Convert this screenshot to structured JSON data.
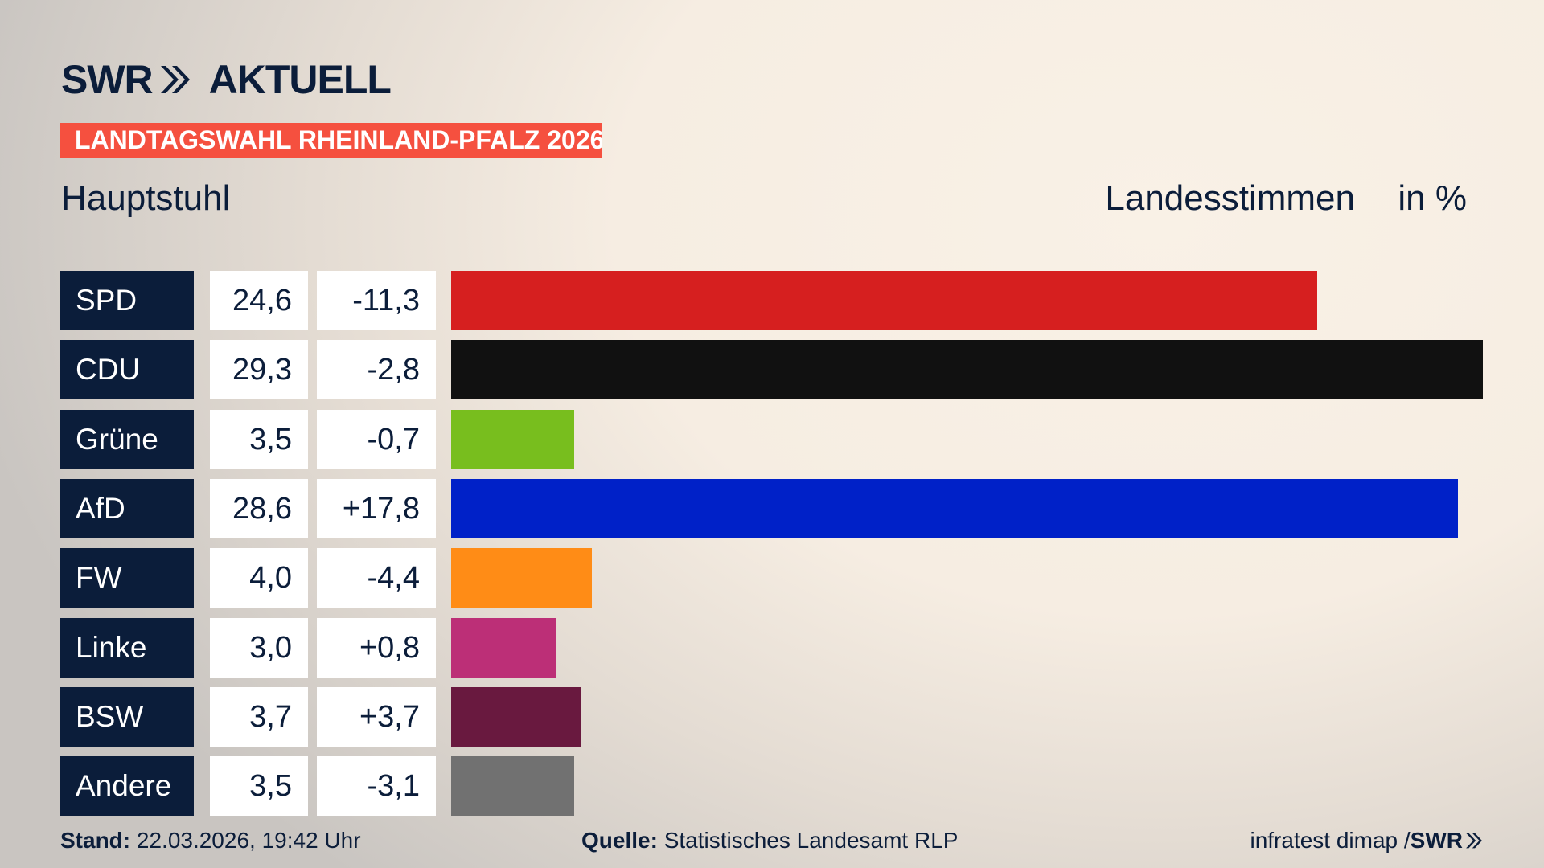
{
  "header": {
    "logo": "SWR AKTUELL",
    "logo_swr": "SWR",
    "logo_aktuell": "AKTUELL",
    "banner": "LANDTAGSWAHL RHEINLAND-PFALZ 2026",
    "place": "Hauptstuhl",
    "measure": "Landesstimmen",
    "unit": "in %"
  },
  "chart_data": {
    "type": "bar",
    "orientation": "horizontal",
    "categories": [
      "SPD",
      "CDU",
      "Grüne",
      "AfD",
      "FW",
      "Linke",
      "BSW",
      "Andere"
    ],
    "values": [
      24.6,
      29.3,
      3.5,
      28.6,
      4.0,
      3.0,
      3.7,
      3.5
    ],
    "value_labels": [
      "24,6",
      "29,3",
      "3,5",
      "28,6",
      "4,0",
      "3,0",
      "3,7",
      "3,5"
    ],
    "diff_labels": [
      "-11,3",
      "-2,8",
      "-0,7",
      "+17,8",
      "-4,4",
      "+0,8",
      "+3,7",
      "-3,1"
    ],
    "colors": [
      "#d61f1f",
      "#111111",
      "#78be1e",
      "#0021c8",
      "#ff8c16",
      "#bc2f77",
      "#69193f",
      "#717171"
    ]
  },
  "footer": {
    "stand_label": "Stand:",
    "stand_value": "22.03.2026, 19:42 Uhr",
    "source_label": "Quelle:",
    "source_value": "Statistisches Landesamt RLP",
    "credit": "infratest dimap / ",
    "credit_logo": "SWR"
  }
}
